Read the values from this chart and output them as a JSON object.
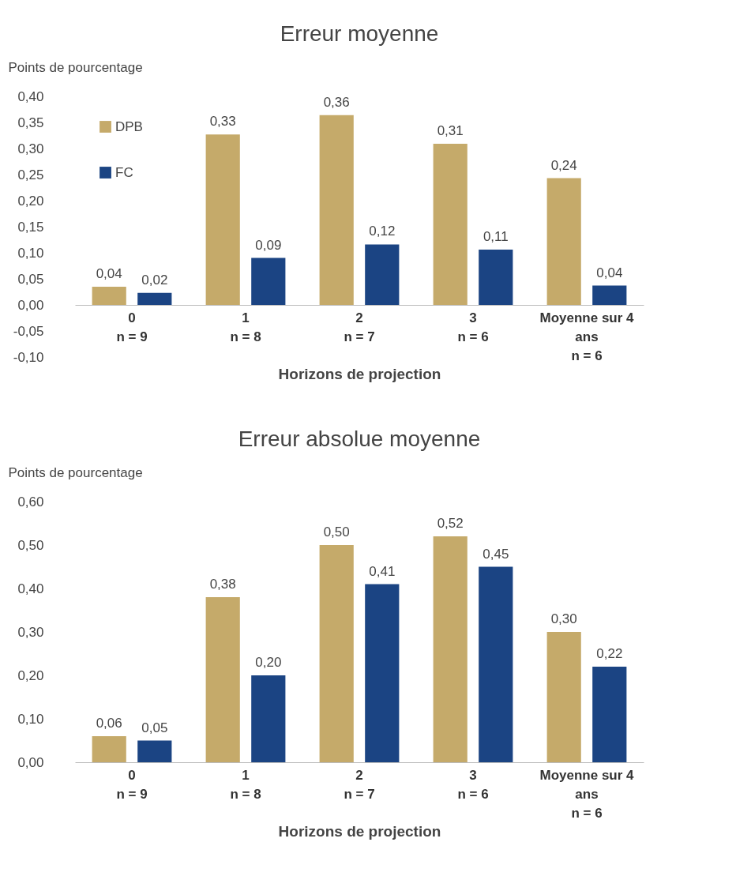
{
  "chart_data": [
    {
      "type": "bar",
      "title": "Erreur moyenne",
      "xlabel": "Horizons de projection",
      "ylabel": "Points de pourcentage",
      "categories": [
        "0\nn = 9",
        "1\nn = 8",
        "2\nn = 7",
        "3\nn = 6",
        "Moyenne sur 4\nans\nn = 6"
      ],
      "series": [
        {
          "name": "DPB",
          "color": "#c5aa6a",
          "values": [
            0.035,
            0.327,
            0.364,
            0.309,
            0.243
          ],
          "value_labels": [
            "0,04",
            "0,33",
            "0,36",
            "0,31",
            "0,24"
          ]
        },
        {
          "name": "FC",
          "color": "#1b4483",
          "values": [
            0.023,
            0.09,
            0.116,
            0.106,
            0.037
          ],
          "value_labels": [
            "0,02",
            "0,09",
            "0,12",
            "0,11",
            "0,04"
          ]
        }
      ],
      "ylim": [
        -0.1,
        0.4
      ],
      "yticks": [
        {
          "value": -0.1,
          "label": "-0,10"
        },
        {
          "value": -0.05,
          "label": "-0,05"
        },
        {
          "value": 0,
          "label": "0,00"
        },
        {
          "value": 0.05,
          "label": "0,05"
        },
        {
          "value": 0.1,
          "label": "0,10"
        },
        {
          "value": 0.15,
          "label": "0,15"
        },
        {
          "value": 0.2,
          "label": "0,20"
        },
        {
          "value": 0.25,
          "label": "0,25"
        },
        {
          "value": 0.3,
          "label": "0,30"
        },
        {
          "value": 0.35,
          "label": "0,35"
        },
        {
          "value": 0.4,
          "label": "0,40"
        }
      ],
      "legend": "top left"
    },
    {
      "type": "bar",
      "title": "Erreur absolue  moyenne",
      "xlabel": "Horizons de projection",
      "ylabel": "Points de pourcentage",
      "categories": [
        "0\nn = 9",
        "1\nn = 8",
        "2\nn = 7",
        "3\nn = 6",
        "Moyenne sur 4\nans\nn = 6"
      ],
      "series": [
        {
          "name": "DPB",
          "color": "#c5aa6a",
          "values": [
            0.06,
            0.38,
            0.5,
            0.52,
            0.3
          ],
          "value_labels": [
            "0,06",
            "0,38",
            "0,50",
            "0,52",
            "0,30"
          ]
        },
        {
          "name": "FC",
          "color": "#1b4483",
          "values": [
            0.05,
            0.2,
            0.41,
            0.45,
            0.22
          ],
          "value_labels": [
            "0,05",
            "0,20",
            "0,41",
            "0,45",
            "0,22"
          ]
        }
      ],
      "ylim": [
        0,
        0.6
      ],
      "yticks": [
        {
          "value": 0,
          "label": "0,00"
        },
        {
          "value": 0.1,
          "label": "0,10"
        },
        {
          "value": 0.2,
          "label": "0,20"
        },
        {
          "value": 0.3,
          "label": "0,30"
        },
        {
          "value": 0.4,
          "label": "0,40"
        },
        {
          "value": 0.5,
          "label": "0,50"
        },
        {
          "value": 0.6,
          "label": "0,60"
        }
      ],
      "legend": "top left"
    }
  ]
}
